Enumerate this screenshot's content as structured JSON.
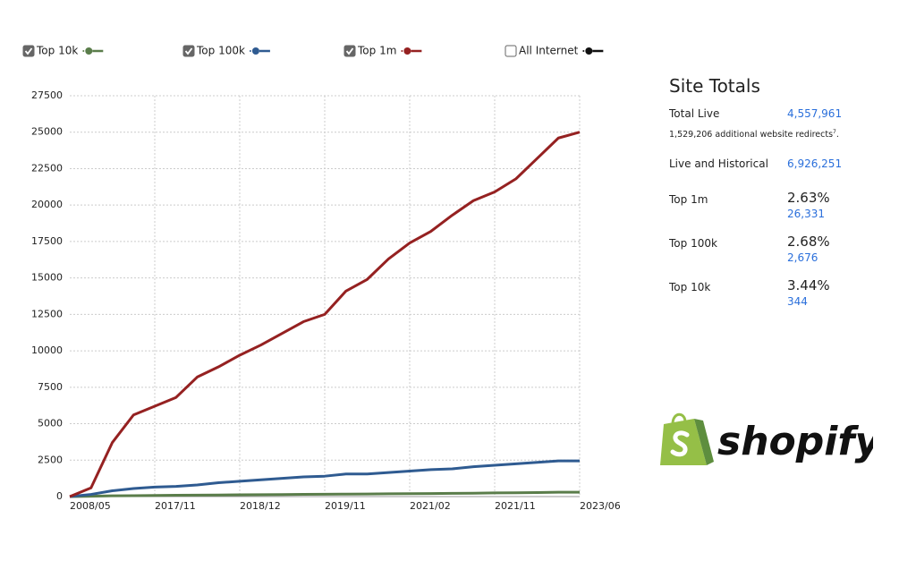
{
  "chart_data": {
    "type": "line",
    "categories": [
      "2008/05",
      null,
      null,
      null,
      "2017/11",
      null,
      null,
      null,
      "2018/12",
      null,
      null,
      null,
      "2019/11",
      null,
      null,
      null,
      "2021/02",
      null,
      null,
      null,
      "2021/11",
      null,
      null,
      null,
      "2023/06"
    ],
    "series": [
      {
        "name": "Top 10k",
        "color": "#5a7d4a",
        "checked": true,
        "values": [
          0,
          20,
          50,
          60,
          80,
          90,
          100,
          110,
          120,
          130,
          140,
          150,
          160,
          170,
          180,
          190,
          200,
          210,
          220,
          230,
          250,
          260,
          280,
          300,
          300
        ]
      },
      {
        "name": "Top 100k",
        "color": "#2f5b91",
        "checked": true,
        "values": [
          0,
          150,
          400,
          550,
          650,
          700,
          800,
          950,
          1050,
          1150,
          1250,
          1350,
          1400,
          1550,
          1550,
          1650,
          1750,
          1850,
          1900,
          2050,
          2150,
          2250,
          2350,
          2450,
          2450
        ]
      },
      {
        "name": "Top 1m",
        "color": "#952121",
        "checked": true,
        "values": [
          0,
          600,
          3700,
          5600,
          6200,
          6800,
          8200,
          8900,
          9700,
          10400,
          11200,
          12000,
          12500,
          14100,
          14900,
          16300,
          17400,
          18200,
          19300,
          20300,
          20900,
          21800,
          23200,
          24600,
          25000
        ]
      },
      {
        "name": "All Internet",
        "color": "#111111",
        "checked": false
      }
    ],
    "ylim": [
      0,
      27500
    ],
    "yticks": [
      0,
      2500,
      5000,
      7500,
      10000,
      12500,
      15000,
      17500,
      20000,
      22500,
      25000,
      27500
    ],
    "grid": true
  },
  "site_totals": {
    "title": "Site Totals",
    "total_live": {
      "label": "Total Live",
      "value": "4,557,961"
    },
    "redirects": {
      "text": "1,529,206 additional website redirects",
      "footnote": "7",
      "end": "."
    },
    "live_historical": {
      "label": "Live and Historical",
      "value": "6,926,251"
    },
    "tops": [
      {
        "label": "Top 1m",
        "percent": "2.63%",
        "count": "26,331"
      },
      {
        "label": "Top 100k",
        "percent": "2.68%",
        "count": "2,676"
      },
      {
        "label": "Top 10k",
        "percent": "3.44%",
        "count": "344"
      }
    ]
  },
  "logo": "shopify"
}
